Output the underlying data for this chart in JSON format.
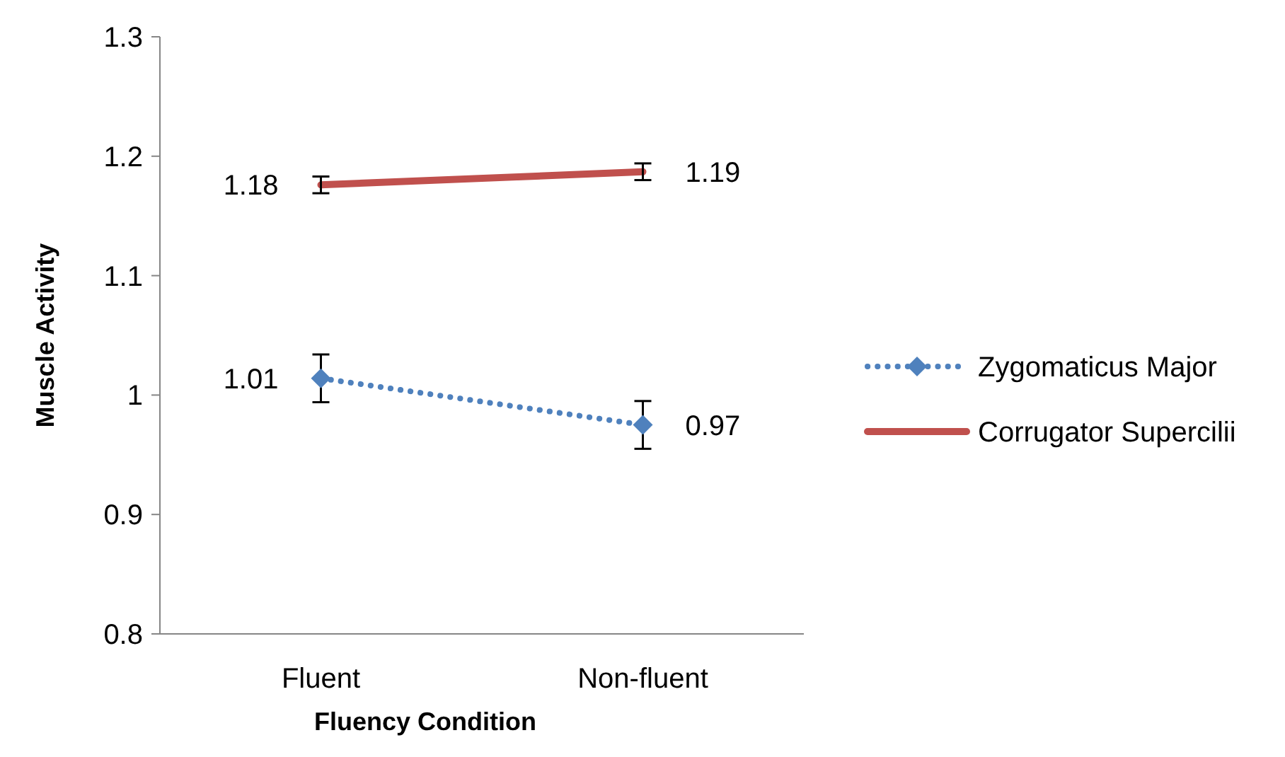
{
  "chart_data": {
    "type": "line",
    "xlabel": "Fluency Condition",
    "ylabel": "Muscle Activity",
    "categories": [
      "Fluent",
      "Non-fluent"
    ],
    "ylim": [
      0.8,
      1.3
    ],
    "yticks": [
      {
        "value": 0.8,
        "label": "0.8"
      },
      {
        "value": 0.9,
        "label": "0.9"
      },
      {
        "value": 1,
        "label": "1"
      },
      {
        "value": 1.1,
        "label": "1.1"
      },
      {
        "value": 1.2,
        "label": "1.2"
      },
      {
        "value": 1.3,
        "label": "1.3"
      }
    ],
    "grid": false,
    "legend": "right",
    "series": [
      {
        "name": "Zygomaticus Major",
        "color": "#4f81bd",
        "values": [
          1.014,
          0.975
        ],
        "errors": [
          0.02,
          0.02
        ],
        "value_labels": [
          "1.01",
          "0.97"
        ],
        "marker": "diamond",
        "line_style": "dotted"
      },
      {
        "name": "Corrugator Supercilii",
        "color": "#c0504d",
        "values": [
          1.176,
          1.187
        ],
        "errors": [
          0.007,
          0.007
        ],
        "value_labels": [
          "1.18",
          "1.19"
        ],
        "marker": "none",
        "line_style": "solid"
      }
    ]
  }
}
